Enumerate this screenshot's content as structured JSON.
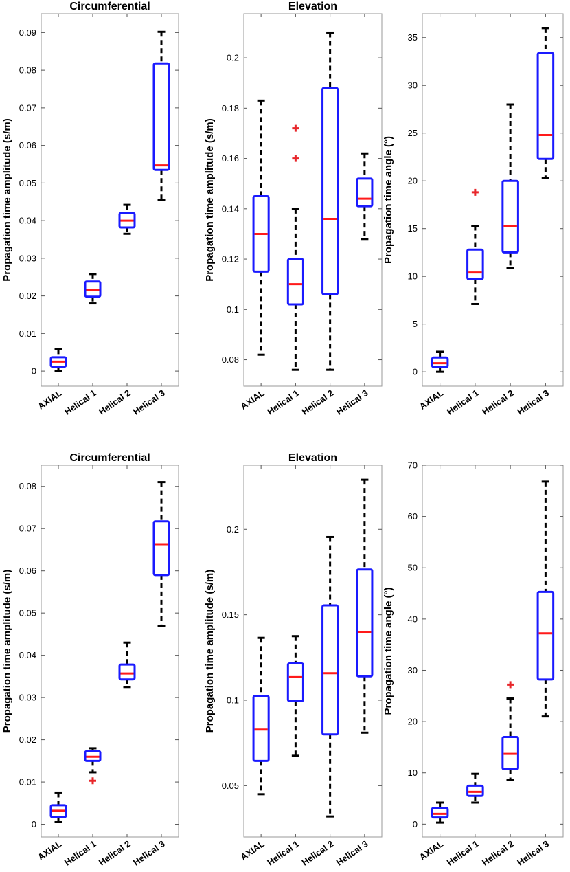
{
  "chart_data": [
    {
      "type": "box",
      "title": "Circumferential",
      "ylabel": "Propagation time amplitude (s/m)",
      "categories": [
        "AXIAL",
        "Helical 1",
        "Helical 2",
        "Helical 3"
      ],
      "ylim": [
        -0.004,
        0.095
      ],
      "yticks": [
        0,
        0.01,
        0.02,
        0.03,
        0.04,
        0.05,
        0.06,
        0.07,
        0.08,
        0.09
      ],
      "ytick_labels": [
        "0",
        "0.01",
        "0.02",
        "0.03",
        "0.04",
        "0.05",
        "0.06",
        "0.07",
        "0.08",
        "0.09"
      ],
      "boxes": [
        {
          "min": 0.0,
          "q1": 0.0012,
          "median": 0.0025,
          "q3": 0.0037,
          "max": 0.0058,
          "outliers": []
        },
        {
          "min": 0.018,
          "q1": 0.0198,
          "median": 0.0215,
          "q3": 0.0238,
          "max": 0.0258,
          "outliers": []
        },
        {
          "min": 0.0365,
          "q1": 0.0382,
          "median": 0.04,
          "q3": 0.042,
          "max": 0.0442,
          "outliers": []
        },
        {
          "min": 0.0455,
          "q1": 0.0535,
          "median": 0.0547,
          "q3": 0.0818,
          "max": 0.0902,
          "outliers": []
        }
      ]
    },
    {
      "type": "box",
      "title": "Elevation",
      "ylabel": "Propagation time amplitude (s/m)",
      "categories": [
        "AXIAL",
        "Helical 1",
        "Helical 2",
        "Helical 3"
      ],
      "ylim": [
        0.0695,
        0.2175
      ],
      "yticks": [
        0.08,
        0.1,
        0.12,
        0.14,
        0.16,
        0.18,
        0.2
      ],
      "ytick_labels": [
        "0.08",
        "0.1",
        "0.12",
        "0.14",
        "0.16",
        "0.18",
        "0.2"
      ],
      "boxes": [
        {
          "min": 0.082,
          "q1": 0.115,
          "median": 0.13,
          "q3": 0.145,
          "max": 0.183,
          "outliers": []
        },
        {
          "min": 0.076,
          "q1": 0.102,
          "median": 0.11,
          "q3": 0.12,
          "max": 0.14,
          "outliers": [
            0.16,
            0.172
          ]
        },
        {
          "min": 0.076,
          "q1": 0.106,
          "median": 0.136,
          "q3": 0.188,
          "max": 0.21,
          "outliers": []
        },
        {
          "min": 0.128,
          "q1": 0.141,
          "median": 0.144,
          "q3": 0.152,
          "max": 0.162,
          "outliers": []
        }
      ]
    },
    {
      "type": "box",
      "title": "",
      "ylabel": "Propagation time angle  (°)",
      "categories": [
        "AXIAL",
        "Helical 1",
        "Helical 2",
        "Helical 3"
      ],
      "ylim": [
        -1.5,
        37.5
      ],
      "yticks": [
        0,
        5,
        10,
        15,
        20,
        25,
        30,
        35
      ],
      "ytick_labels": [
        "0",
        "5",
        "10",
        "15",
        "20",
        "25",
        "30",
        "35"
      ],
      "boxes": [
        {
          "min": 0.0,
          "q1": 0.5,
          "median": 0.9,
          "q3": 1.5,
          "max": 2.1,
          "outliers": []
        },
        {
          "min": 7.1,
          "q1": 9.7,
          "median": 10.4,
          "q3": 12.8,
          "max": 15.3,
          "outliers": [
            18.8
          ]
        },
        {
          "min": 10.9,
          "q1": 12.5,
          "median": 15.3,
          "q3": 20.0,
          "max": 28.0,
          "outliers": []
        },
        {
          "min": 20.3,
          "q1": 22.3,
          "median": 24.8,
          "q3": 33.4,
          "max": 36.0,
          "outliers": []
        }
      ]
    },
    {
      "type": "box",
      "title": "Circumferential",
      "ylabel": "Propagation time amplitude (s/m)",
      "categories": [
        "AXIAL",
        "Helical 1",
        "Helical 2",
        "Helical 3"
      ],
      "ylim": [
        -0.003,
        0.085
      ],
      "yticks": [
        0,
        0.01,
        0.02,
        0.03,
        0.04,
        0.05,
        0.06,
        0.07,
        0.08
      ],
      "ytick_labels": [
        "0",
        "0.01",
        "0.02",
        "0.03",
        "0.04",
        "0.05",
        "0.06",
        "0.07",
        "0.08"
      ],
      "boxes": [
        {
          "min": 0.0005,
          "q1": 0.0017,
          "median": 0.0032,
          "q3": 0.0045,
          "max": 0.0075,
          "outliers": []
        },
        {
          "min": 0.0123,
          "q1": 0.015,
          "median": 0.016,
          "q3": 0.0173,
          "max": 0.018,
          "outliers": [
            0.0103
          ]
        },
        {
          "min": 0.0325,
          "q1": 0.0343,
          "median": 0.0357,
          "q3": 0.0378,
          "max": 0.043,
          "outliers": []
        },
        {
          "min": 0.047,
          "q1": 0.059,
          "median": 0.0663,
          "q3": 0.0717,
          "max": 0.081,
          "outliers": []
        }
      ]
    },
    {
      "type": "box",
      "title": "Elevation",
      "ylabel": "Propagation time amplitude (s/m)",
      "categories": [
        "AXIAL",
        "Helical 1",
        "Helical 2",
        "Helical 3"
      ],
      "ylim": [
        0.02,
        0.2375
      ],
      "yticks": [
        0.05,
        0.1,
        0.15,
        0.2
      ],
      "ytick_labels": [
        "0.05",
        "0.1",
        "0.15",
        "0.2"
      ],
      "boxes": [
        {
          "min": 0.045,
          "q1": 0.0645,
          "median": 0.0828,
          "q3": 0.1025,
          "max": 0.1365,
          "outliers": []
        },
        {
          "min": 0.0675,
          "q1": 0.0995,
          "median": 0.1135,
          "q3": 0.1215,
          "max": 0.1375,
          "outliers": []
        },
        {
          "min": 0.032,
          "q1": 0.08,
          "median": 0.1158,
          "q3": 0.1555,
          "max": 0.1955,
          "outliers": []
        },
        {
          "min": 0.081,
          "q1": 0.114,
          "median": 0.14,
          "q3": 0.1765,
          "max": 0.229,
          "outliers": []
        }
      ]
    },
    {
      "type": "box",
      "title": "",
      "ylabel": "Propagation time angle  (°)",
      "categories": [
        "AXIAL",
        "Helical 1",
        "Helical 2",
        "Helical 3"
      ],
      "ylim": [
        -2.5,
        70
      ],
      "yticks": [
        0,
        10,
        20,
        30,
        40,
        50,
        60,
        70
      ],
      "ytick_labels": [
        "0",
        "10",
        "20",
        "30",
        "40",
        "50",
        "60",
        "70"
      ],
      "boxes": [
        {
          "min": 0.3,
          "q1": 1.3,
          "median": 2.0,
          "q3": 3.2,
          "max": 4.2,
          "outliers": []
        },
        {
          "min": 4.2,
          "q1": 5.5,
          "median": 6.3,
          "q3": 7.5,
          "max": 9.8,
          "outliers": []
        },
        {
          "min": 8.6,
          "q1": 10.7,
          "median": 13.7,
          "q3": 17.0,
          "max": 24.5,
          "outliers": [
            27.2
          ]
        },
        {
          "min": 21.0,
          "q1": 28.2,
          "median": 37.2,
          "q3": 45.3,
          "max": 66.8,
          "outliers": []
        }
      ]
    }
  ],
  "colors": {
    "box": "#1a1aff",
    "median": "#ff1a1a",
    "outlier": "#e8262a",
    "whisker": "#000000",
    "axis": "#000000"
  }
}
